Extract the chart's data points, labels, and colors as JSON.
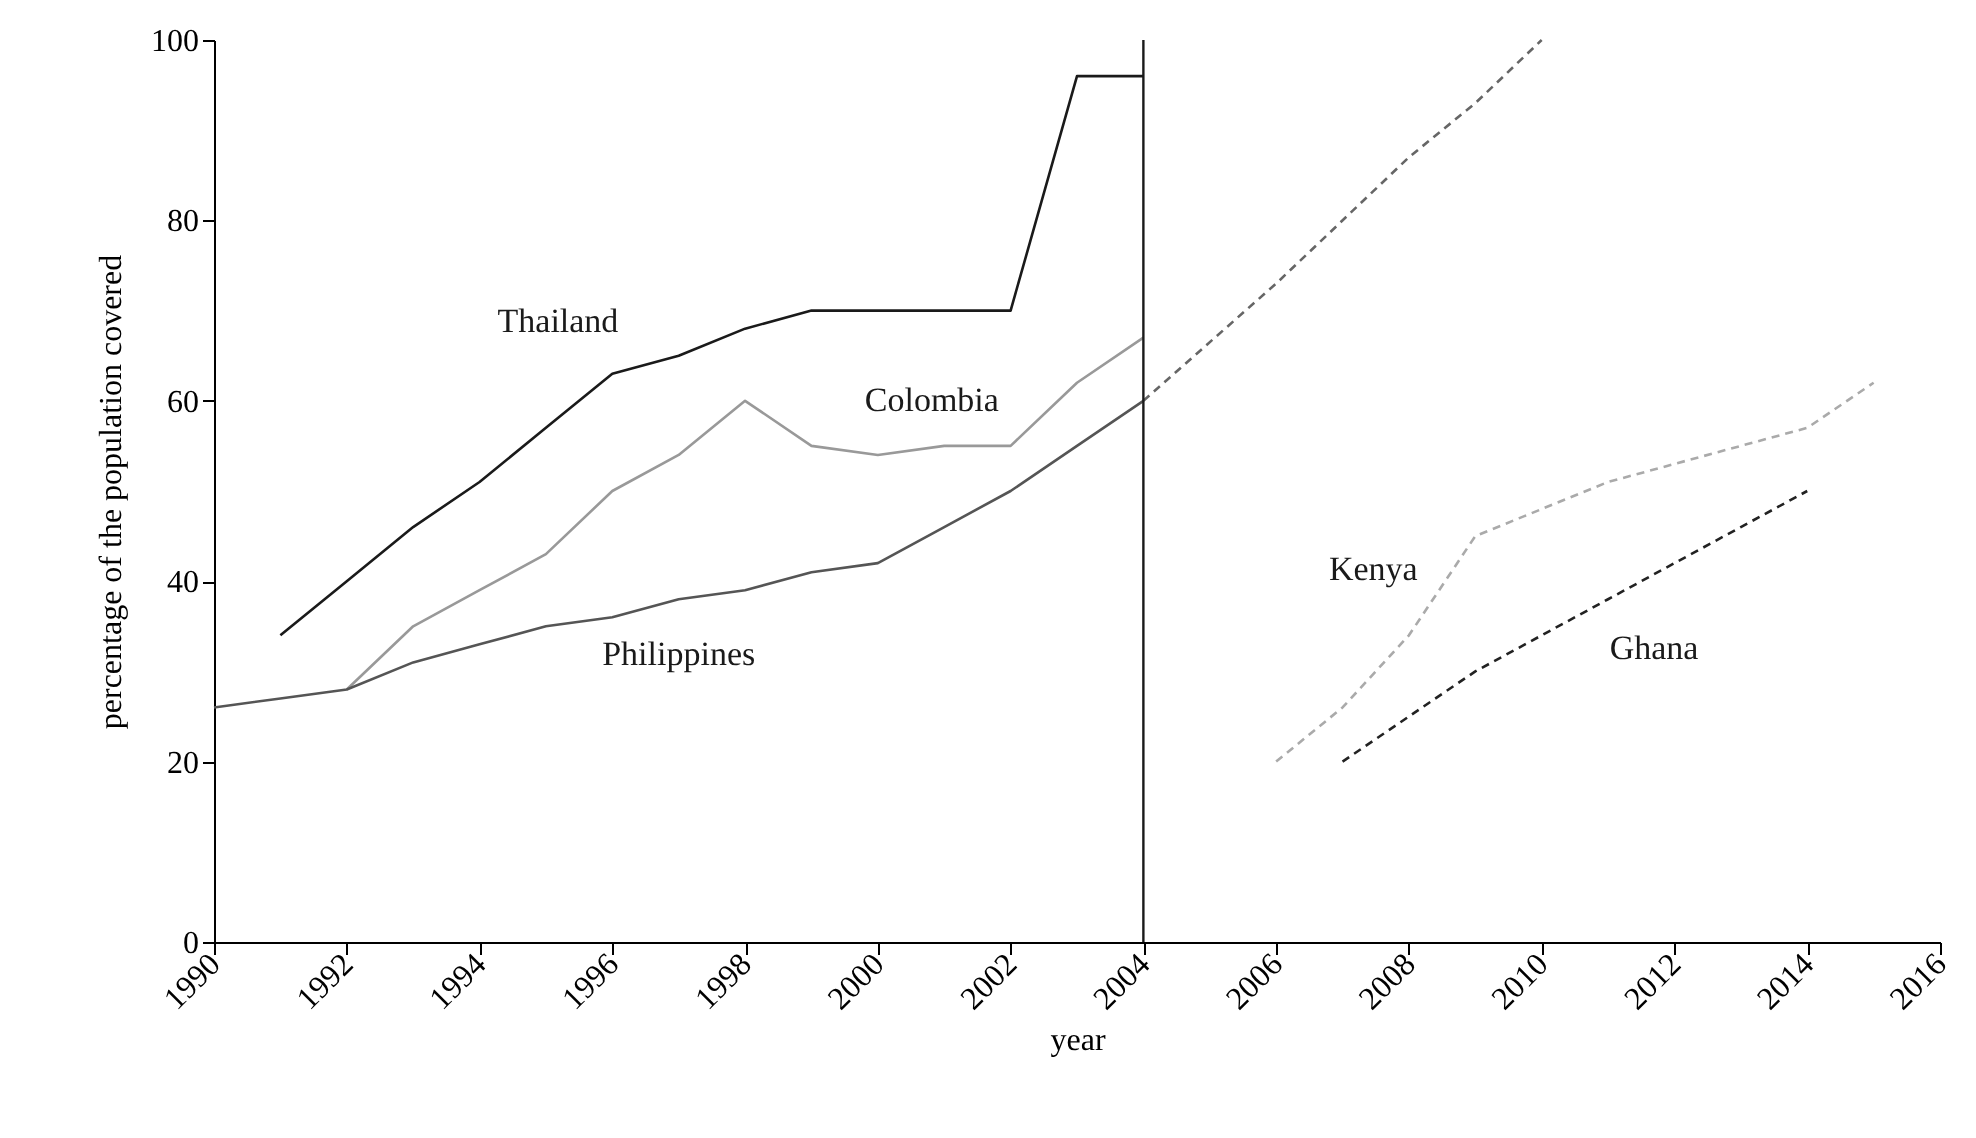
{
  "chart_data": {
    "type": "line",
    "xlabel": "year",
    "ylabel": "percentage of the population covered",
    "xlim": [
      1990,
      2016
    ],
    "xticks": [
      1990,
      1992,
      1994,
      1996,
      1998,
      2000,
      2002,
      2004,
      2006,
      2008,
      2010,
      2012,
      2014,
      2016
    ],
    "ylim": [
      0,
      100
    ],
    "yticks": [
      0,
      20,
      40,
      60,
      80,
      100
    ],
    "grid": false,
    "marker": "none",
    "ref_lines": [
      {
        "axis": "x",
        "value": 2004,
        "color": "#1a1a1a"
      }
    ],
    "series": [
      {
        "name": "Thailand",
        "color": "#1a1a1a",
        "line_style": "solid",
        "x": [
          1991,
          1992,
          1993,
          1994,
          1995,
          1996,
          1997,
          1998,
          1999,
          2000,
          2001,
          2002,
          2003,
          2004
        ],
        "values": [
          34,
          40,
          46,
          51,
          57,
          63,
          65,
          68,
          70,
          70,
          70,
          70,
          96,
          96
        ]
      },
      {
        "name": "Colombia",
        "color": "#999999",
        "line_style": "solid",
        "x": [
          1992,
          1993,
          1994,
          1995,
          1996,
          1997,
          1998,
          1999,
          2000,
          2001,
          2002,
          2003,
          2004
        ],
        "values": [
          28,
          35,
          39,
          43,
          50,
          54,
          60,
          55,
          54,
          55,
          55,
          62,
          67
        ]
      },
      {
        "name": "Philippines",
        "color": "#555555",
        "line_style": "solid",
        "x": [
          1990,
          1991,
          1992,
          1993,
          1994,
          1995,
          1996,
          1997,
          1998,
          1999,
          2000,
          2001,
          2002,
          2003,
          2004
        ],
        "values": [
          26,
          27,
          28,
          31,
          33,
          35,
          36,
          38,
          39,
          41,
          42,
          46,
          50,
          55,
          60
        ]
      },
      {
        "color": "#666666",
        "line_style": "dashed",
        "x": [
          2004,
          2006,
          2008,
          2009,
          2010
        ],
        "values": [
          60,
          73,
          87,
          93,
          100
        ]
      },
      {
        "name": "Kenya",
        "color": "#aaaaaa",
        "line_style": "dashed",
        "x": [
          2006,
          2007,
          2008,
          2009,
          2010,
          2011,
          2012,
          2013,
          2014,
          2015
        ],
        "values": [
          20,
          26,
          34,
          45,
          48,
          51,
          53,
          55,
          57,
          62
        ]
      },
      {
        "name": "Ghana",
        "color": "#222222",
        "line_style": "dashed",
        "x": [
          2007,
          2008,
          2009,
          2010,
          2011,
          2012,
          2013,
          2014
        ],
        "values": [
          20,
          25,
          30,
          34,
          38,
          42,
          46,
          50
        ]
      }
    ]
  }
}
